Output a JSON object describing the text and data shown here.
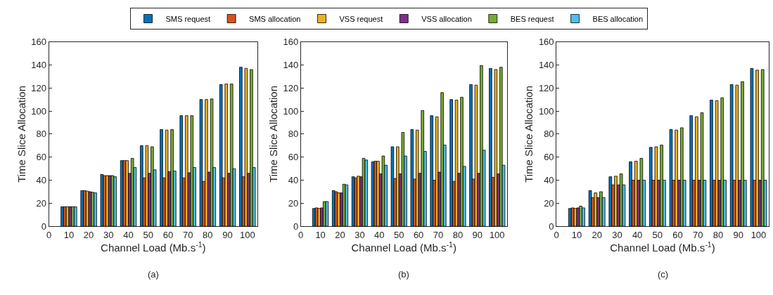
{
  "chart_data": [
    {
      "type": "bar",
      "x": [
        10,
        20,
        30,
        40,
        50,
        60,
        70,
        80,
        90,
        100
      ],
      "xlim": [
        0,
        105
      ],
      "xticks": [
        0,
        10,
        20,
        30,
        40,
        50,
        60,
        70,
        80,
        90,
        100
      ],
      "ylim": [
        0,
        160
      ],
      "yticks": [
        0,
        20,
        40,
        60,
        80,
        100,
        120,
        140,
        160
      ],
      "xlabel": "Channel Load (Mb.s$^{-1}$)",
      "ylabel": "Time Slice Allocation",
      "annotations": [
        "(a)"
      ],
      "legend": "top",
      "series": [
        {
          "name": "SMS request",
          "color": "#0072bd",
          "values": [
            17,
            31,
            45,
            57,
            70,
            84,
            96,
            110,
            123,
            138
          ]
        },
        {
          "name": "SMS allocation",
          "color": "#d95319",
          "values": [
            17,
            31,
            44,
            57,
            42,
            42,
            42,
            39,
            42,
            43
          ]
        },
        {
          "name": "VSS request",
          "color": "#edb120",
          "values": [
            17,
            30.5,
            44,
            57,
            70,
            83.5,
            96,
            110,
            123.5,
            137
          ]
        },
        {
          "name": "VSS allocation",
          "color": "#7e2f8e",
          "values": [
            17,
            30,
            44,
            46,
            46,
            47.5,
            46.5,
            47,
            46,
            46
          ]
        },
        {
          "name": "BES request",
          "color": "#77ac30",
          "values": [
            17,
            29.5,
            44,
            59,
            69,
            84,
            96,
            110.5,
            123.5,
            136
          ]
        },
        {
          "name": "BES allocation",
          "color": "#4dbeee",
          "values": [
            17,
            29,
            43,
            51,
            49,
            48,
            51,
            51,
            50,
            51
          ]
        }
      ]
    },
    {
      "type": "bar",
      "x": [
        10,
        20,
        30,
        40,
        50,
        60,
        70,
        80,
        90,
        100
      ],
      "xlim": [
        0,
        105
      ],
      "xticks": [
        0,
        10,
        20,
        30,
        40,
        50,
        60,
        70,
        80,
        90,
        100
      ],
      "ylim": [
        0,
        160
      ],
      "yticks": [
        0,
        20,
        40,
        60,
        80,
        100,
        120,
        140,
        160
      ],
      "xlabel": "Channel Load (Mb.s$^{-1}$)",
      "ylabel": "Time Slice Allocation",
      "annotations": [
        "(b)"
      ],
      "series": [
        {
          "color": "#0072bd",
          "values": [
            15.5,
            31,
            43,
            56,
            69,
            84,
            96,
            110,
            123,
            137
          ]
        },
        {
          "color": "#d95319",
          "values": [
            16,
            30,
            42,
            56.5,
            41.5,
            41,
            40,
            39,
            41,
            42.5
          ]
        },
        {
          "color": "#edb120",
          "values": [
            15.5,
            29,
            43.5,
            56.5,
            69,
            83.5,
            95,
            109.5,
            122.5,
            136
          ]
        },
        {
          "color": "#7e2f8e",
          "values": [
            16,
            29,
            43,
            45.5,
            45.5,
            46,
            47,
            46,
            46,
            45.5
          ]
        },
        {
          "color": "#77ac30",
          "values": [
            21.5,
            36.5,
            59,
            61,
            81.5,
            100.5,
            116,
            112,
            139.5,
            138
          ]
        },
        {
          "color": "#4dbeee",
          "values": [
            21.5,
            36,
            57.5,
            53,
            61,
            65,
            70.5,
            52,
            66,
            53
          ]
        }
      ]
    },
    {
      "type": "bar",
      "x": [
        10,
        20,
        30,
        40,
        50,
        60,
        70,
        80,
        90,
        100
      ],
      "xlim": [
        0,
        105
      ],
      "xticks": [
        0,
        10,
        20,
        30,
        40,
        50,
        60,
        70,
        80,
        90,
        100
      ],
      "ylim": [
        0,
        160
      ],
      "yticks": [
        0,
        20,
        40,
        60,
        80,
        100,
        120,
        140,
        160
      ],
      "xlabel": "Channel Load (Mb.s$^{-1}$)",
      "ylabel": "Time Slice Allocation",
      "annotations": [
        "(c)"
      ],
      "series": [
        {
          "color": "#0072bd",
          "values": [
            15.5,
            31,
            43,
            56,
            68.5,
            84,
            96,
            109.5,
            123,
            137
          ]
        },
        {
          "color": "#d95319",
          "values": [
            16,
            25,
            36,
            40,
            40,
            40,
            40,
            40,
            40,
            40
          ]
        },
        {
          "color": "#edb120",
          "values": [
            15.5,
            29,
            43.5,
            56.5,
            69,
            83.5,
            95,
            109,
            122.5,
            135.5
          ]
        },
        {
          "color": "#7e2f8e",
          "values": [
            16,
            25,
            36,
            40,
            40,
            40,
            40,
            40,
            40,
            40
          ]
        },
        {
          "color": "#77ac30",
          "values": [
            17.5,
            30,
            45.5,
            59,
            70.5,
            85.5,
            98.5,
            111.5,
            125.5,
            136
          ]
        },
        {
          "color": "#4dbeee",
          "values": [
            16,
            25,
            36,
            40,
            40,
            40,
            40,
            40,
            40,
            40
          ]
        }
      ]
    }
  ]
}
